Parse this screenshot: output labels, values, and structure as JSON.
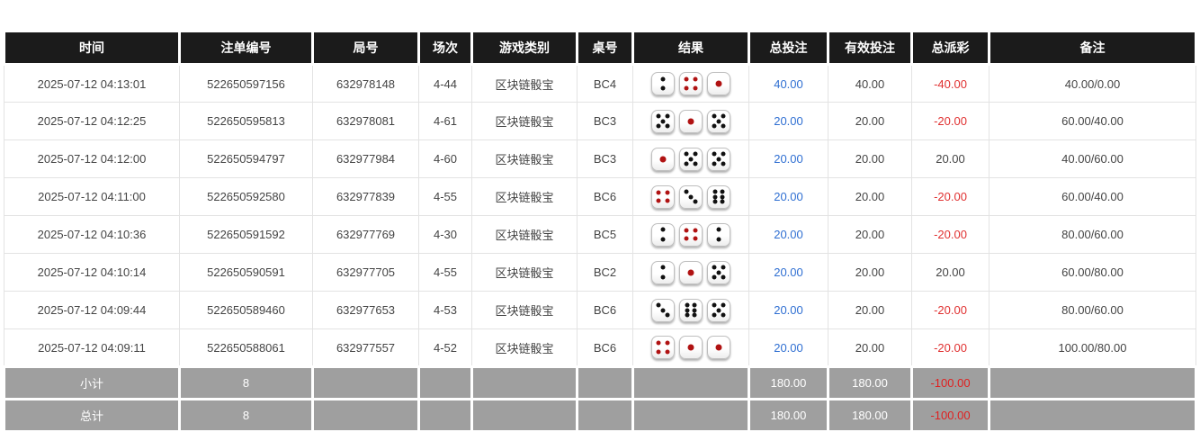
{
  "colors": {
    "header_bg": "#1b1b1b",
    "footer_bg": "#9f9f9f",
    "accent_blue": "#2f6fd2",
    "negative_red": "#e03131",
    "body_border": "#e3e3e3"
  },
  "table": {
    "columns": [
      {
        "key": "time",
        "label": "时间"
      },
      {
        "key": "bet_id",
        "label": "注单编号"
      },
      {
        "key": "round",
        "label": "局号"
      },
      {
        "key": "session",
        "label": "场次"
      },
      {
        "key": "game",
        "label": "游戏类别"
      },
      {
        "key": "table_no",
        "label": "桌号"
      },
      {
        "key": "result",
        "label": "结果"
      },
      {
        "key": "total_bet",
        "label": "总投注"
      },
      {
        "key": "valid_bet",
        "label": "有效投注"
      },
      {
        "key": "payout",
        "label": "总派彩"
      },
      {
        "key": "remark",
        "label": "备注"
      }
    ],
    "rows": [
      {
        "time": "2025-07-12 04:13:01",
        "bet_id": "522650597156",
        "round": "632978148",
        "session": "4-44",
        "game": "区块链骰宝",
        "table_no": "BC4",
        "dice": [
          2,
          4,
          1
        ],
        "total_bet": "40.00",
        "valid_bet": "40.00",
        "payout": "-40.00",
        "remark": "40.00/0.00"
      },
      {
        "time": "2025-07-12 04:12:25",
        "bet_id": "522650595813",
        "round": "632978081",
        "session": "4-61",
        "game": "区块链骰宝",
        "table_no": "BC3",
        "dice": [
          5,
          1,
          5
        ],
        "total_bet": "20.00",
        "valid_bet": "20.00",
        "payout": "-20.00",
        "remark": "60.00/40.00"
      },
      {
        "time": "2025-07-12 04:12:00",
        "bet_id": "522650594797",
        "round": "632977984",
        "session": "4-60",
        "game": "区块链骰宝",
        "table_no": "BC3",
        "dice": [
          1,
          5,
          5
        ],
        "total_bet": "20.00",
        "valid_bet": "20.00",
        "payout": "20.00",
        "remark": "40.00/60.00"
      },
      {
        "time": "2025-07-12 04:11:00",
        "bet_id": "522650592580",
        "round": "632977839",
        "session": "4-55",
        "game": "区块链骰宝",
        "table_no": "BC6",
        "dice": [
          4,
          3,
          6
        ],
        "total_bet": "20.00",
        "valid_bet": "20.00",
        "payout": "-20.00",
        "remark": "60.00/40.00"
      },
      {
        "time": "2025-07-12 04:10:36",
        "bet_id": "522650591592",
        "round": "632977769",
        "session": "4-30",
        "game": "区块链骰宝",
        "table_no": "BC5",
        "dice": [
          2,
          4,
          2
        ],
        "total_bet": "20.00",
        "valid_bet": "20.00",
        "payout": "-20.00",
        "remark": "80.00/60.00"
      },
      {
        "time": "2025-07-12 04:10:14",
        "bet_id": "522650590591",
        "round": "632977705",
        "session": "4-55",
        "game": "区块链骰宝",
        "table_no": "BC2",
        "dice": [
          2,
          1,
          5
        ],
        "total_bet": "20.00",
        "valid_bet": "20.00",
        "payout": "20.00",
        "remark": "60.00/80.00"
      },
      {
        "time": "2025-07-12 04:09:44",
        "bet_id": "522650589460",
        "round": "632977653",
        "session": "4-53",
        "game": "区块链骰宝",
        "table_no": "BC6",
        "dice": [
          3,
          6,
          5
        ],
        "total_bet": "20.00",
        "valid_bet": "20.00",
        "payout": "-20.00",
        "remark": "80.00/60.00"
      },
      {
        "time": "2025-07-12 04:09:11",
        "bet_id": "522650588061",
        "round": "632977557",
        "session": "4-52",
        "game": "区块链骰宝",
        "table_no": "BC6",
        "dice": [
          4,
          1,
          1
        ],
        "total_bet": "20.00",
        "valid_bet": "20.00",
        "payout": "-20.00",
        "remark": "100.00/80.00"
      }
    ],
    "footer": [
      {
        "label": "小计",
        "count": "8",
        "total_bet": "180.00",
        "valid_bet": "180.00",
        "payout": "-100.00"
      },
      {
        "label": "总计",
        "count": "8",
        "total_bet": "180.00",
        "valid_bet": "180.00",
        "payout": "-100.00"
      }
    ]
  }
}
